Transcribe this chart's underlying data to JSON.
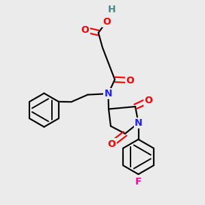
{
  "background_color": "#ebebeb",
  "atom_colors": {
    "N": "#2020ff",
    "O": "#ff0000",
    "F": "#ff00aa",
    "H": "#4a8888",
    "C": "#000000"
  },
  "bond_lw": 1.6,
  "font_size": 10
}
